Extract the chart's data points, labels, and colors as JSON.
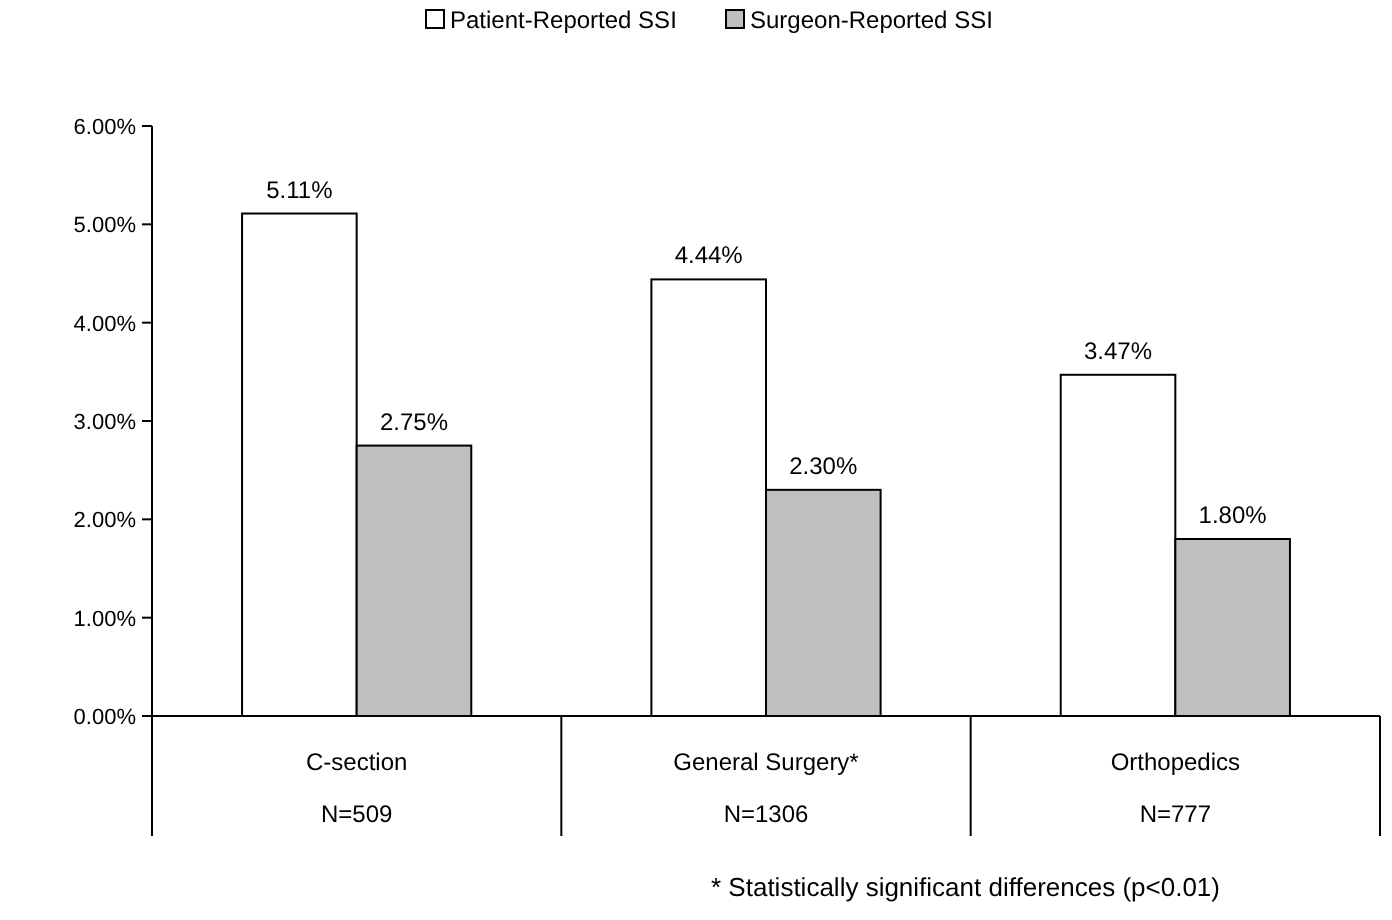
{
  "chart_data": {
    "type": "bar",
    "categories": [
      "C-section\nN=509",
      "General Surgery*\nN=1306",
      "Orthopedics\nN=777"
    ],
    "series": [
      {
        "name": "Patient-Reported SSI",
        "color": "#ffffff",
        "values": [
          5.11,
          4.44,
          3.47
        ],
        "value_labels": [
          "5.11%",
          "4.44%",
          "3.47%"
        ]
      },
      {
        "name": "Surgeon-Reported SSI",
        "color": "#bfbfbf",
        "values": [
          2.75,
          2.3,
          1.8
        ],
        "value_labels": [
          "2.75%",
          "2.30%",
          "1.80%"
        ]
      }
    ],
    "ylim": [
      0,
      6
    ],
    "yticks": [
      {
        "value": 0,
        "label": "0.00%"
      },
      {
        "value": 1,
        "label": "1.00%"
      },
      {
        "value": 2,
        "label": "2.00%"
      },
      {
        "value": 3,
        "label": "3.00%"
      },
      {
        "value": 4,
        "label": "4.00%"
      },
      {
        "value": 5,
        "label": "5.00%"
      },
      {
        "value": 6,
        "label": "6.00%"
      }
    ],
    "legend": "top",
    "grid": false,
    "annotations": [
      "* Statistically significant differences (p<0.01)"
    ]
  }
}
